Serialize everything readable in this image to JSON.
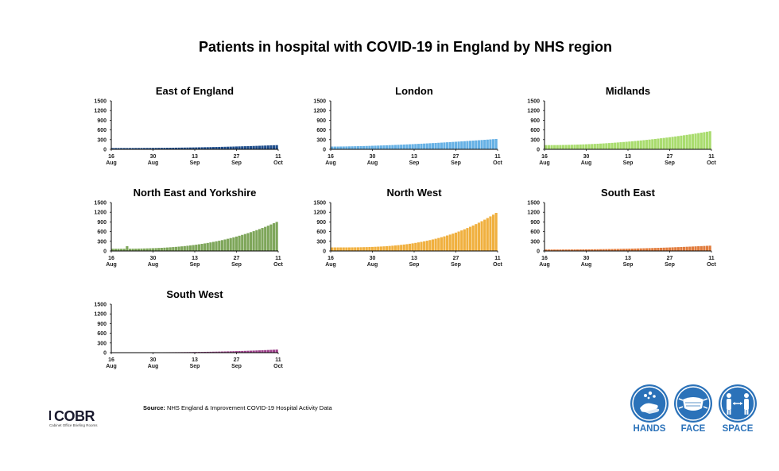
{
  "title": "Patients in hospital with COVID-19 in England by NHS region",
  "source_label": "Source:",
  "source_text": "NHS England & Improvement COVID-19 Hospital Activity Data",
  "logo": {
    "text": "COBR",
    "subtitle": "Cabinet Office Briefing Rooms"
  },
  "campaign": [
    {
      "label": "HANDS",
      "icon": "hands-washing-icon"
    },
    {
      "label": "FACE",
      "icon": "face-mask-icon"
    },
    {
      "label": "SPACE",
      "icon": "social-distance-icon"
    }
  ],
  "colors": {
    "campaign_blue": "#2b72b9"
  },
  "chart_data": [
    {
      "type": "bar",
      "title": "East of England",
      "color": "#1f4e8c",
      "ylim": [
        0,
        1500
      ],
      "yticks": [
        0,
        300,
        600,
        900,
        1200,
        1500
      ],
      "xticks": [
        {
          "day": 16,
          "month": "Aug"
        },
        {
          "day": 30,
          "month": "Aug"
        },
        {
          "day": 13,
          "month": "Sep"
        },
        {
          "day": 27,
          "month": "Sep"
        },
        {
          "day": 11,
          "month": "Oct"
        }
      ],
      "start": 40,
      "end": 130,
      "curve": 2.2,
      "spikes": []
    },
    {
      "type": "bar",
      "title": "London",
      "color": "#66b1e5",
      "ylim": [
        0,
        1500
      ],
      "yticks": [
        0,
        300,
        600,
        900,
        1200,
        1500
      ],
      "xticks": [
        {
          "day": 16,
          "month": "Aug"
        },
        {
          "day": 30,
          "month": "Aug"
        },
        {
          "day": 13,
          "month": "Sep"
        },
        {
          "day": 27,
          "month": "Sep"
        },
        {
          "day": 11,
          "month": "Oct"
        }
      ],
      "start": 85,
      "end": 320,
      "curve": 1.6,
      "spikes": []
    },
    {
      "type": "bar",
      "title": "Midlands",
      "color": "#a9dc6e",
      "ylim": [
        0,
        1500
      ],
      "yticks": [
        0,
        300,
        600,
        900,
        1200,
        1500
      ],
      "xticks": [
        {
          "day": 16,
          "month": "Aug"
        },
        {
          "day": 30,
          "month": "Aug"
        },
        {
          "day": 13,
          "month": "Sep"
        },
        {
          "day": 27,
          "month": "Sep"
        },
        {
          "day": 11,
          "month": "Oct"
        }
      ],
      "start": 130,
      "end": 560,
      "curve": 2.0,
      "spikes": []
    },
    {
      "type": "bar",
      "title": "North East and Yorkshire",
      "color": "#7ea65a",
      "ylim": [
        0,
        1500
      ],
      "yticks": [
        0,
        300,
        600,
        900,
        1200,
        1500
      ],
      "xticks": [
        {
          "day": 16,
          "month": "Aug"
        },
        {
          "day": 30,
          "month": "Aug"
        },
        {
          "day": 13,
          "month": "Sep"
        },
        {
          "day": 27,
          "month": "Sep"
        },
        {
          "day": 11,
          "month": "Oct"
        }
      ],
      "start": 70,
      "end": 900,
      "curve": 2.8,
      "spikes": [
        [
          5,
          150
        ]
      ]
    },
    {
      "type": "bar",
      "title": "North West",
      "color": "#f0b03f",
      "ylim": [
        0,
        1500
      ],
      "yticks": [
        0,
        300,
        600,
        900,
        1200,
        1500
      ],
      "xticks": [
        {
          "day": 16,
          "month": "Aug"
        },
        {
          "day": 30,
          "month": "Aug"
        },
        {
          "day": 13,
          "month": "Sep"
        },
        {
          "day": 27,
          "month": "Sep"
        },
        {
          "day": 11,
          "month": "Oct"
        }
      ],
      "start": 110,
      "end": 1180,
      "curve": 3.0,
      "spikes": []
    },
    {
      "type": "bar",
      "title": "South East",
      "color": "#e07b3c",
      "ylim": [
        0,
        1500
      ],
      "yticks": [
        0,
        300,
        600,
        900,
        1200,
        1500
      ],
      "xticks": [
        {
          "day": 16,
          "month": "Aug"
        },
        {
          "day": 30,
          "month": "Aug"
        },
        {
          "day": 13,
          "month": "Sep"
        },
        {
          "day": 27,
          "month": "Sep"
        },
        {
          "day": 11,
          "month": "Oct"
        }
      ],
      "start": 45,
      "end": 165,
      "curve": 2.2,
      "spikes": []
    },
    {
      "type": "bar",
      "title": "South West",
      "color": "#9b3d88",
      "ylim": [
        0,
        1500
      ],
      "yticks": [
        0,
        300,
        600,
        900,
        1200,
        1500
      ],
      "xticks": [
        {
          "day": 16,
          "month": "Aug"
        },
        {
          "day": 30,
          "month": "Aug"
        },
        {
          "day": 13,
          "month": "Sep"
        },
        {
          "day": 27,
          "month": "Sep"
        },
        {
          "day": 11,
          "month": "Oct"
        }
      ],
      "start": 10,
      "end": 95,
      "curve": 3.0,
      "spikes": []
    }
  ]
}
